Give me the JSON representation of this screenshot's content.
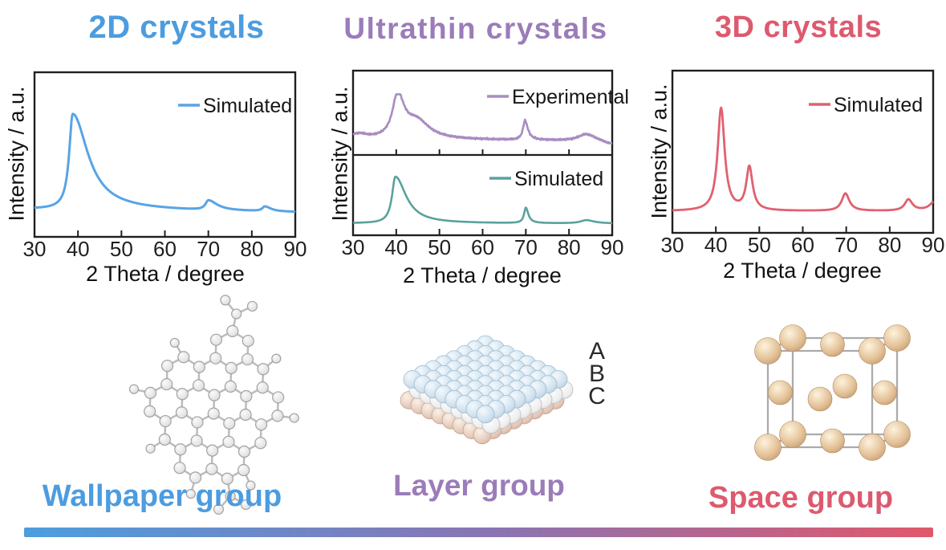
{
  "figure": {
    "columns": [
      {
        "id": "2d",
        "title": "2D crystals",
        "color": "#4c9ce0",
        "group_label": "Wallpaper group",
        "structure": "graphene-like hexagonal lattice"
      },
      {
        "id": "ultrathin",
        "title": "Ultrathin crystals",
        "color": "#9b7cb8",
        "group_label": "Layer group",
        "structure": "three-atomic-layer ABC slab"
      },
      {
        "id": "3d",
        "title": "3D crystals",
        "color": "#dd5a6e",
        "group_label": "Space group",
        "structure": "fcc unit cell"
      }
    ],
    "stack_labels": [
      "A",
      "B",
      "C"
    ],
    "gradient_bar": {
      "from": "#4d9ede",
      "mid": "#8a74b2",
      "to": "#e0586b"
    },
    "structure_colors": {
      "graphene_ball": "#e7e7e7",
      "graphene_bond": "#bcbcbc",
      "layer_top": "#c3d8e9",
      "layer_mid": "#e2e2e2",
      "layer_bottom": "#ddc0b0",
      "fcc_atom": "#d9b386",
      "fcc_edge": "#ababab"
    }
  },
  "chart_data": [
    {
      "type": "line",
      "title": "2D crystals",
      "xlabel": "2 Theta / degree",
      "ylabel": "Intensity / a.u.",
      "x_range": [
        30,
        90
      ],
      "x_ticks": [
        30,
        40,
        50,
        60,
        70,
        80,
        90
      ],
      "y_axis": "arbitrary units, unlabeled",
      "grid": false,
      "legend_position": "upper right",
      "series": [
        {
          "name": "Simulated",
          "color": "#58a4e4",
          "panel": 0,
          "noise": 0,
          "baseline_slope": -0.04,
          "peaks": [
            {
              "center": 38.8,
              "height": 1.0,
              "width_left": 1.0,
              "width_right": 4.2
            },
            {
              "center": 70.0,
              "height": 0.1,
              "width_left": 0.8,
              "width_right": 2.4
            },
            {
              "center": 83.0,
              "height": 0.05,
              "width_left": 0.7,
              "width_right": 1.6
            }
          ]
        }
      ]
    },
    {
      "type": "line",
      "title": "Ultrathin crystals",
      "xlabel": "2 Theta / degree",
      "ylabel": "Intensity / a.u.",
      "x_range": [
        30,
        90
      ],
      "x_ticks": [
        30,
        40,
        50,
        60,
        70,
        80,
        90
      ],
      "y_axis": "arbitrary units, unlabeled",
      "grid": false,
      "panels": 2,
      "legend_position": "upper right",
      "series": [
        {
          "name": "Experimental",
          "color": "#a88cc2",
          "panel": 0,
          "noise": 0.025,
          "baseline_slope": -0.05,
          "peaks": [
            {
              "center": 31.5,
              "height": 0.1,
              "width_left": 3.0,
              "width_right": 2.0
            },
            {
              "center": 40.3,
              "height": 1.0,
              "width_left": 1.4,
              "width_right": 1.9
            },
            {
              "center": 44.8,
              "height": 0.38,
              "width_left": 3.0,
              "width_right": 3.5
            },
            {
              "center": 69.8,
              "height": 0.45,
              "width_left": 0.55,
              "width_right": 0.8
            },
            {
              "center": 84.0,
              "height": 0.17,
              "width_left": 2.2,
              "width_right": 2.8
            },
            {
              "center": 91.0,
              "height": -0.12,
              "width_left": 3.0,
              "width_right": 3.0
            }
          ]
        },
        {
          "name": "Simulated",
          "color": "#5aa29d",
          "panel": 1,
          "noise": 0,
          "baseline_slope": -0.01,
          "peaks": [
            {
              "center": 39.8,
              "height": 1.0,
              "width_left": 0.95,
              "width_right": 3.0
            },
            {
              "center": 70.0,
              "height": 0.33,
              "width_left": 0.5,
              "width_right": 0.7
            },
            {
              "center": 84.0,
              "height": 0.07,
              "width_left": 1.6,
              "width_right": 2.2
            }
          ]
        }
      ]
    },
    {
      "type": "line",
      "title": "3D crystals",
      "xlabel": "2 Theta / degree",
      "ylabel": "Intensity / a.u.",
      "x_range": [
        30,
        90
      ],
      "x_ticks": [
        30,
        40,
        50,
        60,
        70,
        80,
        90
      ],
      "y_axis": "arbitrary units, unlabeled",
      "grid": false,
      "legend_position": "upper right",
      "series": [
        {
          "name": "Simulated",
          "color": "#e0616f",
          "panel": 0,
          "noise": 0,
          "baseline_slope": 0,
          "peaks": [
            {
              "center": 41.2,
              "height": 1.0,
              "width_left": 0.95,
              "width_right": 1.0
            },
            {
              "center": 47.7,
              "height": 0.42,
              "width_left": 0.85,
              "width_right": 0.9
            },
            {
              "center": 69.8,
              "height": 0.17,
              "width_left": 1.0,
              "width_right": 1.1
            },
            {
              "center": 84.3,
              "height": 0.11,
              "width_left": 1.0,
              "width_right": 1.1
            },
            {
              "center": 90.5,
              "height": 0.1,
              "width_left": 1.4,
              "width_right": 1.4
            }
          ]
        }
      ]
    }
  ]
}
